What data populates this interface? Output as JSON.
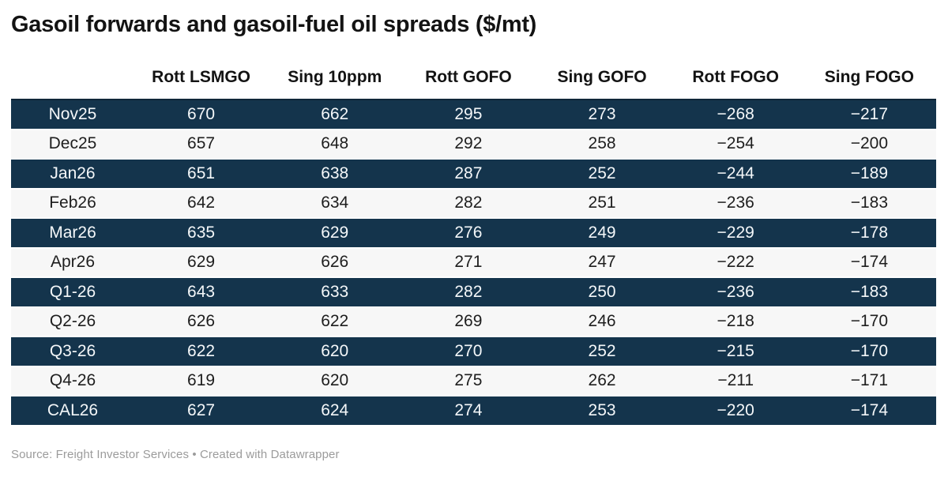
{
  "title": "Gasoil forwards and gasoil-fuel oil spreads ($/mt)",
  "footer": {
    "text": "Source: Freight Investor Services • Created with Datawrapper"
  },
  "colors": {
    "dark_row_bg": "#14344c",
    "dark_row_text": "#f4f7f9",
    "light_row_bg": "#f7f7f7",
    "light_row_text": "#1e1e1e",
    "title_text": "#131313",
    "footer_text": "#9b9b9b",
    "table_top_border": "#0f2638"
  },
  "chart_data": {
    "type": "table",
    "title": "Gasoil forwards and gasoil-fuel oil spreads ($/mt)",
    "columns": [
      "",
      "Rott LSMGO",
      "Sing 10ppm",
      "Rott GOFO",
      "Sing GOFO",
      "Rott FOGO",
      "Sing FOGO"
    ],
    "rows": [
      {
        "label": "Nov25",
        "values": [
          670,
          662,
          295,
          273,
          -268,
          -217
        ]
      },
      {
        "label": "Dec25",
        "values": [
          657,
          648,
          292,
          258,
          -254,
          -200
        ]
      },
      {
        "label": "Jan26",
        "values": [
          651,
          638,
          287,
          252,
          -244,
          -189
        ]
      },
      {
        "label": "Feb26",
        "values": [
          642,
          634,
          282,
          251,
          -236,
          -183
        ]
      },
      {
        "label": "Mar26",
        "values": [
          635,
          629,
          276,
          249,
          -229,
          -178
        ]
      },
      {
        "label": "Apr26",
        "values": [
          629,
          626,
          271,
          247,
          -222,
          -174
        ]
      },
      {
        "label": "Q1-26",
        "values": [
          643,
          633,
          282,
          250,
          -236,
          -183
        ]
      },
      {
        "label": "Q2-26",
        "values": [
          626,
          622,
          269,
          246,
          -218,
          -170
        ]
      },
      {
        "label": "Q3-26",
        "values": [
          622,
          620,
          270,
          252,
          -215,
          -170
        ]
      },
      {
        "label": "Q4-26",
        "values": [
          619,
          620,
          275,
          262,
          -211,
          -171
        ]
      },
      {
        "label": "CAL26",
        "values": [
          627,
          624,
          274,
          253,
          -220,
          -174
        ]
      }
    ],
    "layout": {
      "striped": true,
      "dark_rows": "odd",
      "value_alignment": "center",
      "source_note": "Source: Freight Investor Services • Created with Datawrapper"
    }
  }
}
